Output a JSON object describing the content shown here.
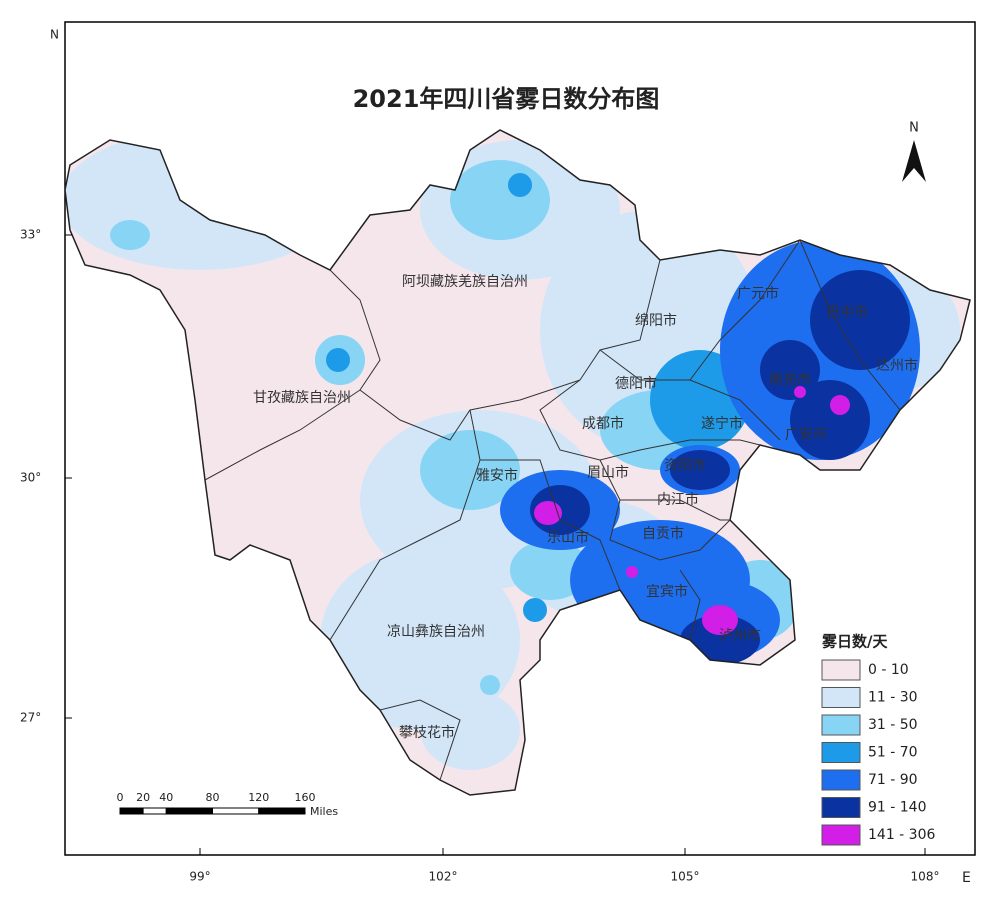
{
  "title": "2021年四川省雾日数分布图",
  "north_arrow": "N",
  "frame": {
    "north": "N",
    "east": "E",
    "lat_labels": [
      "33°",
      "30°",
      "27°"
    ],
    "lon_labels": [
      "99°",
      "102°",
      "105°",
      "108°"
    ]
  },
  "regions": [
    {
      "label": "阿坝藏族羌族自治州"
    },
    {
      "label": "甘孜藏族自治州"
    },
    {
      "label": "广元市"
    },
    {
      "label": "巴中市"
    },
    {
      "label": "绵阳市"
    },
    {
      "label": "德阳市"
    },
    {
      "label": "南充市"
    },
    {
      "label": "达州市"
    },
    {
      "label": "成都市"
    },
    {
      "label": "遂宁市"
    },
    {
      "label": "广安市"
    },
    {
      "label": "雅安市"
    },
    {
      "label": "眉山市"
    },
    {
      "label": "资阳市"
    },
    {
      "label": "内江市"
    },
    {
      "label": "乐山市"
    },
    {
      "label": "自贡市"
    },
    {
      "label": "宜宾市"
    },
    {
      "label": "泸州市"
    },
    {
      "label": "凉山彝族自治州"
    },
    {
      "label": "攀枝花市"
    }
  ],
  "legend": {
    "title": "雾日数/天",
    "items": [
      {
        "label": "0  -  10",
        "color": "#f5e6ec"
      },
      {
        "label": "11  -  30",
        "color": "#d2e6f8"
      },
      {
        "label": "31  -  50",
        "color": "#87d4f5"
      },
      {
        "label": "51  -  70",
        "color": "#1e9be8"
      },
      {
        "label": "71  -  90",
        "color": "#1e6ef0"
      },
      {
        "label": "91  -  140",
        "color": "#0a32a0"
      },
      {
        "label": "141  -  306",
        "color": "#d21ee6"
      }
    ]
  },
  "scale_bar": {
    "ticks": [
      0,
      20,
      40,
      80,
      120,
      160
    ],
    "unit": "Miles"
  }
}
